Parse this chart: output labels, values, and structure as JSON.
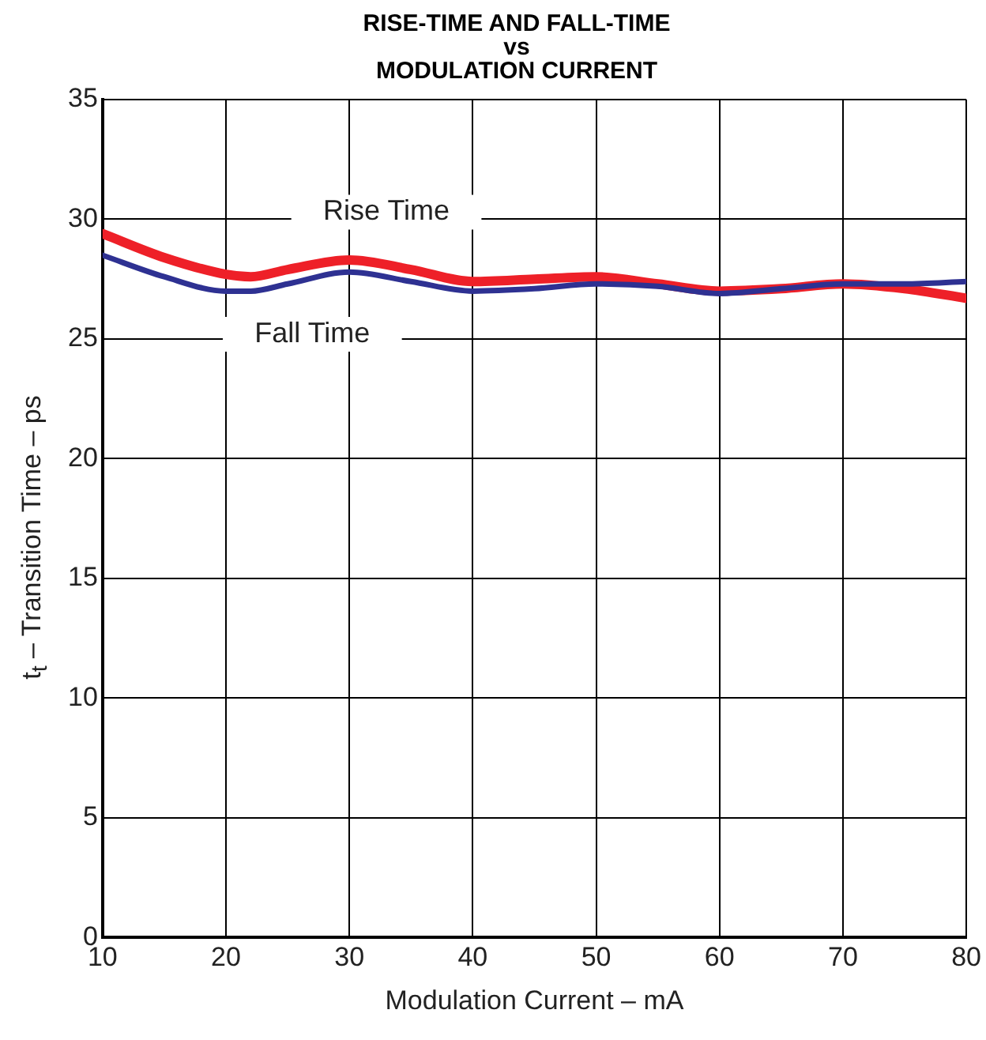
{
  "chart_data": {
    "type": "line",
    "title": "RISE-TIME AND FALL-TIME\nvs\nMODULATION CURRENT",
    "xlabel": "Modulation Current – mA",
    "ylabel": "t$_{t}$ – Transition Time – ps",
    "x": [
      10,
      15,
      20,
      22,
      25,
      30,
      35,
      40,
      45,
      50,
      55,
      60,
      65,
      70,
      75,
      80
    ],
    "series": [
      {
        "name": "Rise Time",
        "color": "#ee2028",
        "values": [
          29.4,
          28.4,
          27.7,
          27.6,
          27.9,
          28.3,
          27.9,
          27.4,
          27.5,
          27.6,
          27.3,
          27.0,
          27.1,
          27.3,
          27.1,
          26.7
        ]
      },
      {
        "name": "Fall Time",
        "color": "#2e3192",
        "values": [
          28.5,
          27.6,
          27.0,
          27.0,
          27.3,
          27.8,
          27.4,
          27.0,
          27.1,
          27.3,
          27.2,
          26.9,
          27.1,
          27.3,
          27.3,
          27.4
        ]
      }
    ],
    "xlim": [
      10,
      80
    ],
    "xticks": [
      10,
      20,
      30,
      40,
      50,
      60,
      70,
      80
    ],
    "ylim": [
      0,
      35
    ],
    "yticks": [
      0,
      5,
      10,
      15,
      20,
      25,
      30,
      35
    ],
    "grid": true,
    "legend": false,
    "marker": "none",
    "line_style": "solid"
  }
}
